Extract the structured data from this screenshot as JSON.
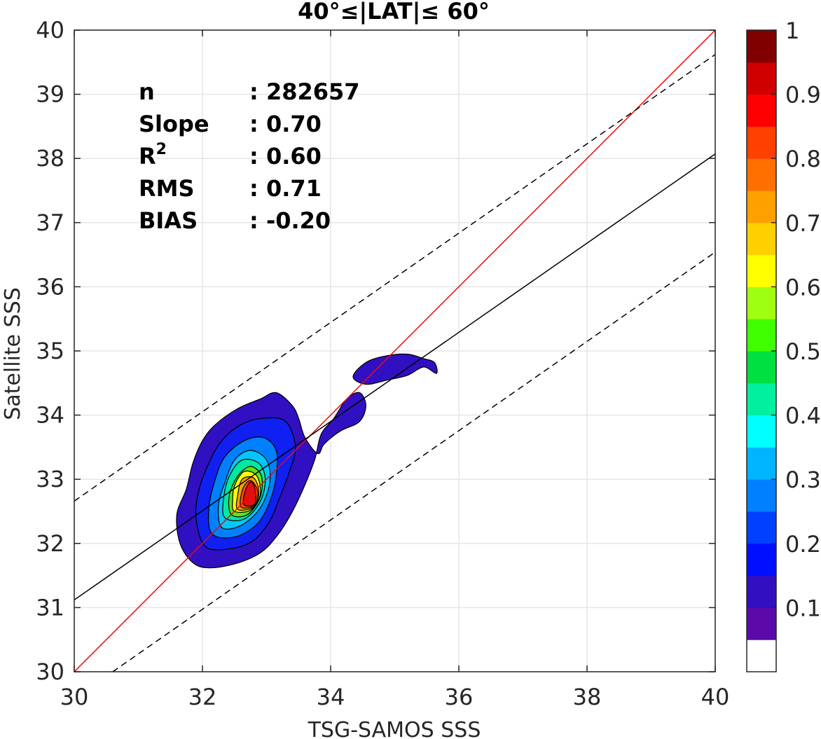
{
  "chart_data": {
    "type": "contour",
    "title": "40°≤|LAT|≤ 60°",
    "xlabel": "TSG-SAMOS SSS",
    "ylabel": "Satellite SSS",
    "xlim": [
      30,
      40
    ],
    "ylim": [
      30,
      40
    ],
    "x_ticks": [
      "30",
      "32",
      "34",
      "36",
      "38",
      "40"
    ],
    "y_ticks": [
      "30",
      "31",
      "32",
      "33",
      "34",
      "35",
      "36",
      "37",
      "38",
      "39",
      "40"
    ],
    "grid": true,
    "stats": [
      {
        "label": "n",
        "value": ": 282657"
      },
      {
        "label": "Slope",
        "value": ": 0.70"
      },
      {
        "label": "R",
        "sup": "2",
        "value": ": 0.60"
      },
      {
        "label": "RMS",
        "value": ": 0.71"
      },
      {
        "label": "BIAS",
        "value": ": -0.20"
      }
    ],
    "lines": [
      {
        "kind": "one-to-one",
        "color": "#ff0000",
        "style": "solid",
        "points": [
          [
            30,
            30
          ],
          [
            40,
            40
          ]
        ]
      },
      {
        "kind": "regression",
        "color": "#000000",
        "style": "solid",
        "points": [
          [
            30,
            31.12
          ],
          [
            40,
            38.07
          ]
        ]
      },
      {
        "kind": "upper-bound",
        "color": "#000000",
        "style": "dashed",
        "points": [
          [
            30,
            32.66
          ],
          [
            40,
            39.62
          ]
        ]
      },
      {
        "kind": "lower-bound",
        "color": "#000000",
        "style": "dashed",
        "points": [
          [
            30.6,
            30
          ],
          [
            40,
            36.54
          ]
        ]
      }
    ],
    "contours": [
      {
        "level": 0.05,
        "color": "#3010c0",
        "points": [
          [
            31.85,
            31.7
          ],
          [
            32.1,
            31.62
          ],
          [
            32.5,
            31.68
          ],
          [
            32.9,
            31.85
          ],
          [
            33.15,
            32.1
          ],
          [
            33.35,
            32.4
          ],
          [
            33.55,
            32.8
          ],
          [
            33.75,
            33.3
          ],
          [
            33.85,
            33.7
          ],
          [
            34.05,
            33.95
          ],
          [
            34.25,
            34.25
          ],
          [
            34.45,
            34.35
          ],
          [
            34.55,
            34.15
          ],
          [
            34.45,
            33.9
          ],
          [
            34.15,
            33.75
          ],
          [
            33.9,
            33.55
          ],
          [
            33.8,
            33.4
          ],
          [
            33.6,
            33.65
          ],
          [
            33.5,
            33.95
          ],
          [
            33.4,
            34.15
          ],
          [
            33.15,
            34.35
          ],
          [
            32.9,
            34.25
          ],
          [
            32.55,
            34.1
          ],
          [
            32.2,
            33.85
          ],
          [
            32.0,
            33.6
          ],
          [
            31.85,
            33.25
          ],
          [
            31.75,
            32.85
          ],
          [
            31.6,
            32.45
          ],
          [
            31.65,
            32.0
          ]
        ]
      },
      {
        "level": 0.05,
        "color": "#3010c0",
        "points": [
          [
            34.35,
            34.6
          ],
          [
            34.55,
            34.82
          ],
          [
            34.85,
            34.92
          ],
          [
            35.2,
            34.95
          ],
          [
            35.45,
            34.88
          ],
          [
            35.62,
            34.82
          ],
          [
            35.65,
            34.65
          ],
          [
            35.45,
            34.75
          ],
          [
            35.2,
            34.62
          ],
          [
            34.9,
            34.55
          ],
          [
            34.55,
            34.48
          ]
        ]
      },
      {
        "level": 0.15,
        "color": "#1020f0",
        "points": [
          [
            32.05,
            31.95
          ],
          [
            32.45,
            31.92
          ],
          [
            32.8,
            32.05
          ],
          [
            33.05,
            32.35
          ],
          [
            33.2,
            32.7
          ],
          [
            33.35,
            33.1
          ],
          [
            33.45,
            33.5
          ],
          [
            33.3,
            33.9
          ],
          [
            32.95,
            33.95
          ],
          [
            32.6,
            33.85
          ],
          [
            32.3,
            33.6
          ],
          [
            32.1,
            33.25
          ],
          [
            31.95,
            32.85
          ],
          [
            31.9,
            32.4
          ]
        ]
      },
      {
        "level": 0.25,
        "color": "#0080ff",
        "points": [
          [
            32.15,
            32.15
          ],
          [
            32.5,
            32.1
          ],
          [
            32.85,
            32.3
          ],
          [
            33.05,
            32.65
          ],
          [
            33.15,
            33.05
          ],
          [
            33.15,
            33.45
          ],
          [
            32.95,
            33.65
          ],
          [
            32.65,
            33.6
          ],
          [
            32.35,
            33.35
          ],
          [
            32.2,
            33.0
          ],
          [
            32.1,
            32.55
          ]
        ]
      },
      {
        "level": 0.35,
        "color": "#00c8ff",
        "points": [
          [
            32.3,
            32.25
          ],
          [
            32.6,
            32.28
          ],
          [
            32.9,
            32.55
          ],
          [
            33.05,
            32.95
          ],
          [
            33.0,
            33.3
          ],
          [
            32.75,
            33.45
          ],
          [
            32.5,
            33.3
          ],
          [
            32.35,
            32.95
          ],
          [
            32.25,
            32.6
          ]
        ]
      },
      {
        "level": 0.45,
        "color": "#00e8a0",
        "points": [
          [
            32.35,
            32.4
          ],
          [
            32.65,
            32.38
          ],
          [
            32.9,
            32.65
          ],
          [
            32.98,
            33.0
          ],
          [
            32.88,
            33.25
          ],
          [
            32.62,
            33.3
          ],
          [
            32.42,
            33.05
          ],
          [
            32.33,
            32.7
          ]
        ]
      },
      {
        "level": 0.55,
        "color": "#60e020",
        "points": [
          [
            32.45,
            32.45
          ],
          [
            32.7,
            32.45
          ],
          [
            32.9,
            32.72
          ],
          [
            32.92,
            33.05
          ],
          [
            32.75,
            33.2
          ],
          [
            32.55,
            33.05
          ],
          [
            32.42,
            32.75
          ]
        ]
      },
      {
        "level": 0.65,
        "color": "#ffff00",
        "points": [
          [
            32.5,
            32.5
          ],
          [
            32.75,
            32.52
          ],
          [
            32.9,
            32.75
          ],
          [
            32.85,
            33.05
          ],
          [
            32.65,
            33.12
          ],
          [
            32.5,
            32.9
          ],
          [
            32.47,
            32.65
          ]
        ]
      },
      {
        "level": 0.75,
        "color": "#ffa000",
        "points": [
          [
            32.55,
            32.53
          ],
          [
            32.8,
            32.57
          ],
          [
            32.88,
            32.8
          ],
          [
            32.8,
            33.02
          ],
          [
            32.62,
            33.0
          ],
          [
            32.55,
            32.75
          ]
        ]
      },
      {
        "level": 0.85,
        "color": "#ff5000",
        "points": [
          [
            32.6,
            32.57
          ],
          [
            32.82,
            32.6
          ],
          [
            32.86,
            32.82
          ],
          [
            32.75,
            32.98
          ],
          [
            32.63,
            32.85
          ]
        ]
      },
      {
        "level": 0.9,
        "color": "#e01010",
        "points": [
          [
            32.65,
            32.6
          ],
          [
            32.82,
            32.62
          ],
          [
            32.82,
            32.85
          ],
          [
            32.75,
            32.96
          ],
          [
            32.66,
            32.8
          ]
        ]
      }
    ],
    "colorbar": {
      "ticks": [
        "0.1",
        "0.2",
        "0.3",
        "0.4",
        "0.5",
        "0.6",
        "0.7",
        "0.8",
        "0.9",
        "1"
      ],
      "colors": [
        "#ffffff",
        "#5a0aa8",
        "#3010c0",
        "#0010ff",
        "#0040ff",
        "#0080ff",
        "#00b4ff",
        "#00ffff",
        "#00f0a0",
        "#00e040",
        "#40ff00",
        "#a0ff10",
        "#ffff00",
        "#ffd000",
        "#ffa000",
        "#ff7000",
        "#ff4000",
        "#ff0000",
        "#d00000",
        "#800000"
      ]
    }
  }
}
